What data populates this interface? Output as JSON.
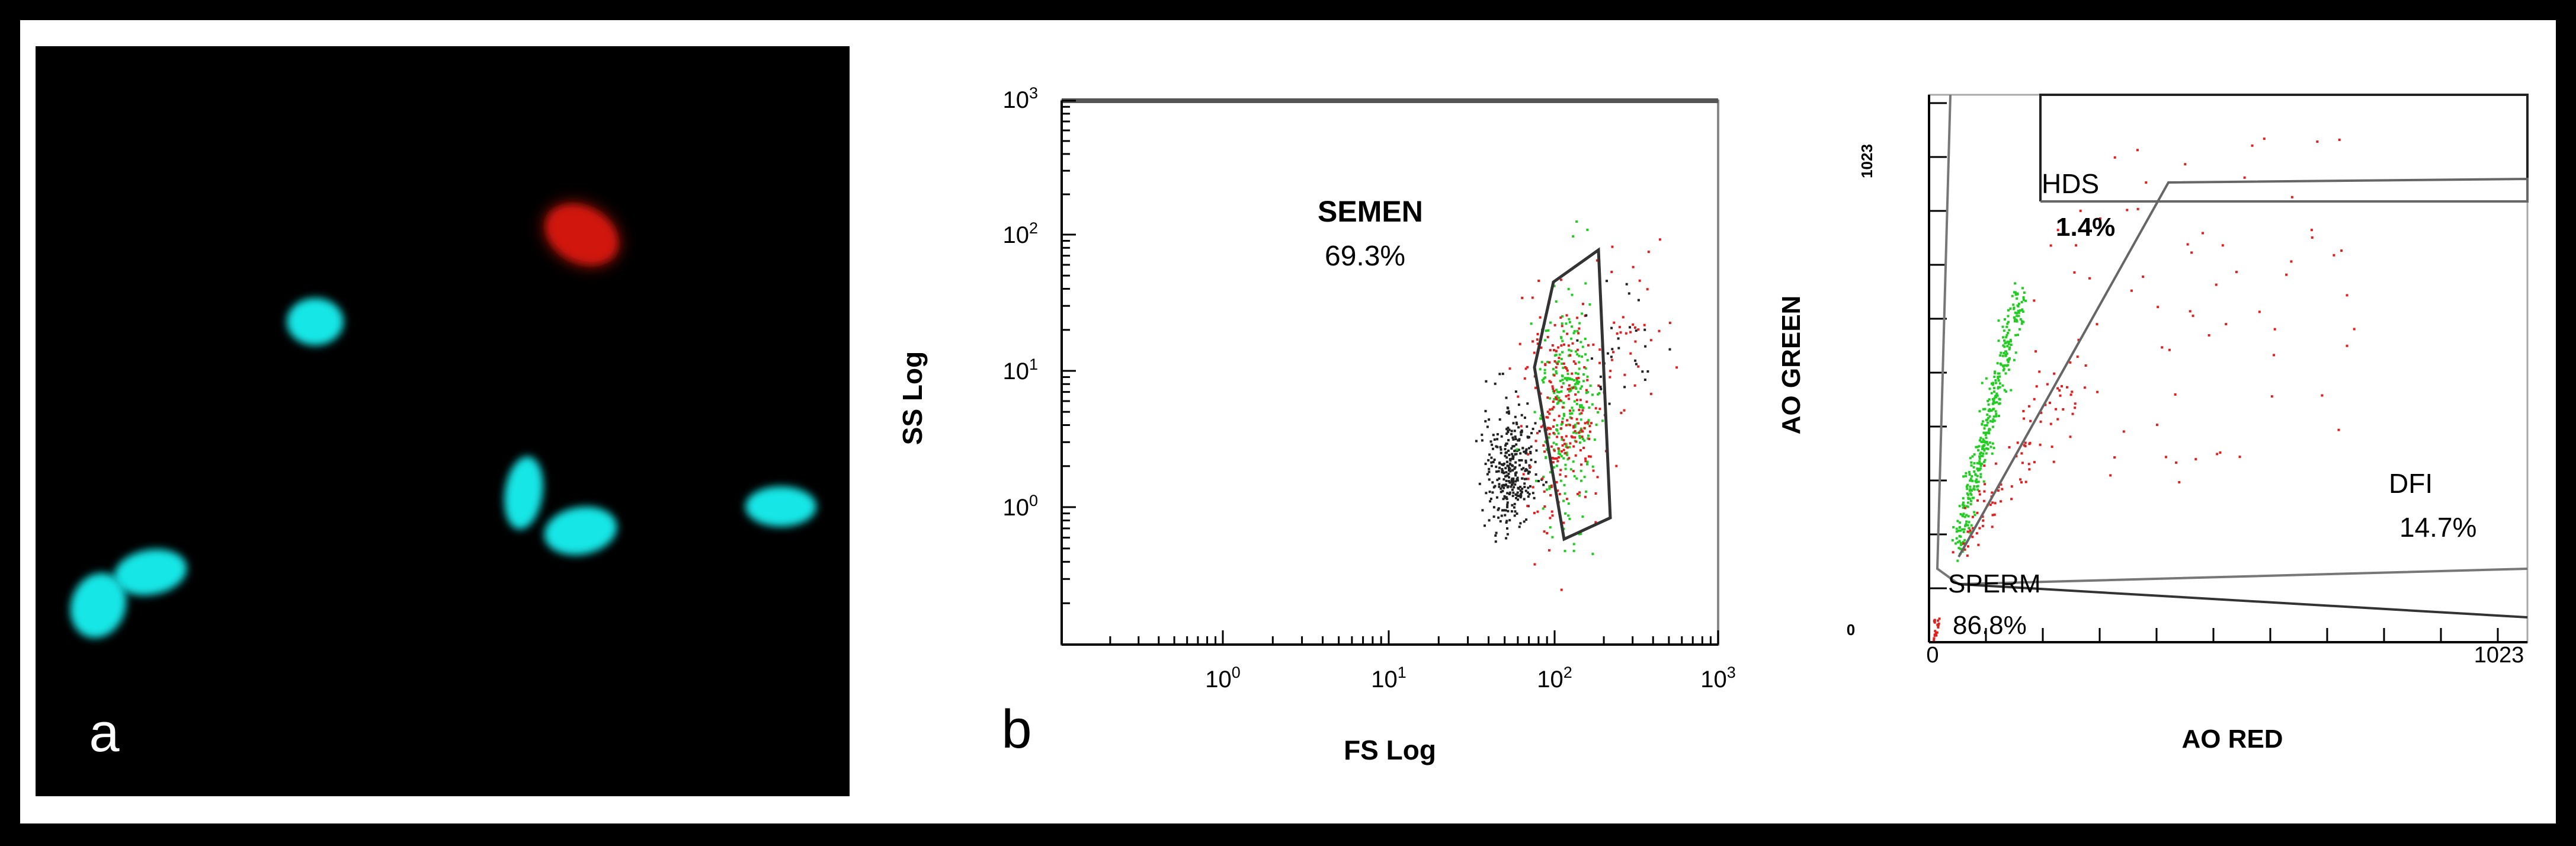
{
  "panels": {
    "a": {
      "letter": "a"
    },
    "b": {
      "letter": "b"
    }
  },
  "plot1": {
    "title_gate": "SEMEN",
    "gate_pct": "69.3%",
    "xlabel": "FS Log",
    "ylabel": "SS Log",
    "x_ticks": [
      {
        "base": "10",
        "exp": "0"
      },
      {
        "base": "10",
        "exp": "1"
      },
      {
        "base": "10",
        "exp": "2"
      },
      {
        "base": "10",
        "exp": "3"
      }
    ],
    "y_ticks": [
      {
        "base": "10",
        "exp": "0"
      },
      {
        "base": "10",
        "exp": "1"
      },
      {
        "base": "10",
        "exp": "2"
      },
      {
        "base": "10",
        "exp": "3"
      }
    ]
  },
  "plot2": {
    "xlabel": "AO RED",
    "ylabel": "AO GREEN",
    "x_min": "0",
    "x_max": "1023",
    "y_min": "0",
    "y_max": "1023",
    "gates": {
      "hds": {
        "label": "HDS",
        "pct": "1.4%"
      },
      "dfi": {
        "label": "DFI",
        "pct": "14.7%"
      },
      "sperm": {
        "label": "SPERM",
        "pct": "86.8%"
      }
    }
  },
  "colors": {
    "cyan_nucleus": "#18e6e6",
    "red_nucleus": "#e01a0a",
    "dot_green": "#22cc22",
    "dot_red": "#e02020",
    "dot_black": "#222222"
  }
}
